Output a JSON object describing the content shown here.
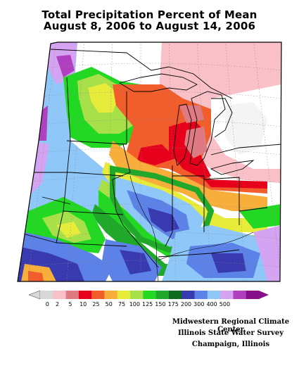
{
  "map": {
    "title_line1": "Total Precipitation Percent of Mean",
    "title_line2": "August 8, 2006 to August 14, 2006"
  },
  "legend": {
    "bins": [
      {
        "label": "0",
        "color": "#d8d8d8"
      },
      {
        "label": "2",
        "color": "#f9c0c8"
      },
      {
        "label": "5",
        "color": "#e07a82"
      },
      {
        "label": "10",
        "color": "#e6001c"
      },
      {
        "label": "25",
        "color": "#f25d2c"
      },
      {
        "label": "50",
        "color": "#f8ae3b"
      },
      {
        "label": "75",
        "color": "#e7ec3a"
      },
      {
        "label": "100",
        "color": "#a8e04a"
      },
      {
        "label": "125",
        "color": "#22d822"
      },
      {
        "label": "150",
        "color": "#1fa829"
      },
      {
        "label": "175",
        "color": "#0e6a1e"
      },
      {
        "label": "200",
        "color": "#3a3ab0"
      },
      {
        "label": "300",
        "color": "#5c82e8"
      },
      {
        "label": "400",
        "color": "#8fc8f8"
      },
      {
        "label": "500",
        "color": "#d4a4f2"
      },
      {
        "label": "",
        "color": "#b040c0"
      },
      {
        "label": "",
        "color": "#86108a"
      }
    ],
    "labels": [
      "0",
      "2",
      "5",
      "10",
      "25",
      "50",
      "75",
      "100",
      "125",
      "150",
      "175",
      "200",
      "300",
      "400",
      "500"
    ]
  },
  "credits": {
    "line1": "Midwestern Regional Climate Center",
    "line2": "Illinois State Water Survey",
    "line3": "Champaign, Illinois"
  }
}
